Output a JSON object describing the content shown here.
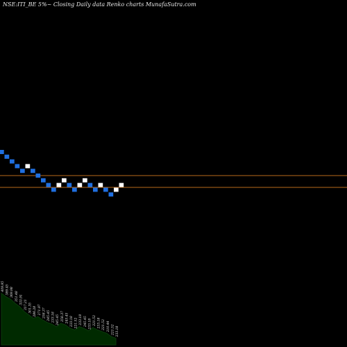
{
  "title": "NSE:ITI_BE 5%~  Closing Daily data  Renko  charts MunafaSutra.com",
  "chart_data": {
    "type": "renko",
    "title": "NSE:ITI_BE 5%~  Closing Daily data  Renko  charts MunafaSutra.com",
    "colors": {
      "down_brick": "#1f6fe0",
      "up_brick": "#ffffff",
      "reference_line": "#b86a1a",
      "volume_area": "#0b3a0b",
      "volume_fill": "#002a00",
      "background": "#000000"
    },
    "reference_lines": [
      {
        "name": "upper-line",
        "level": 253.8
      },
      {
        "name": "lower-line",
        "level": 236.2
      }
    ],
    "bricks": [
      {
        "dir": "down",
        "level": 0
      },
      {
        "dir": "down",
        "level": -1
      },
      {
        "dir": "down",
        "level": -2
      },
      {
        "dir": "down",
        "level": -3
      },
      {
        "dir": "down",
        "level": -4
      },
      {
        "dir": "up",
        "level": -3
      },
      {
        "dir": "down",
        "level": -4
      },
      {
        "dir": "down",
        "level": -5
      },
      {
        "dir": "down",
        "level": -6
      },
      {
        "dir": "down",
        "level": -7
      },
      {
        "dir": "down",
        "level": -8
      },
      {
        "dir": "up",
        "level": -7
      },
      {
        "dir": "up",
        "level": -6
      },
      {
        "dir": "down",
        "level": -7
      },
      {
        "dir": "down",
        "level": -8
      },
      {
        "dir": "up",
        "level": -7
      },
      {
        "dir": "up",
        "level": -6
      },
      {
        "dir": "down",
        "level": -7
      },
      {
        "dir": "down",
        "level": -8
      },
      {
        "dir": "up",
        "level": -7
      },
      {
        "dir": "down",
        "level": -8
      },
      {
        "dir": "down",
        "level": -9
      },
      {
        "dir": "up",
        "level": -8
      },
      {
        "dir": "up",
        "level": -7
      }
    ],
    "volume_labels": [
      "409.95",
      "389.45",
      "369.98",
      "351.48",
      "333.91",
      "317.21",
      "301.35",
      "286.28",
      "271.97",
      "258.37",
      "245.45",
      "233.18",
      "245.45",
      "258.37",
      "245.45",
      "233.18",
      "221.52",
      "233.18",
      "245.45",
      "233.18",
      "221.52",
      "233.18",
      "221.52",
      "210.44",
      "221.52",
      "233.18"
    ],
    "volume_values": [
      62,
      58,
      55,
      50,
      46,
      40,
      36,
      32,
      34,
      30,
      27,
      25,
      22,
      26,
      24,
      20,
      18,
      22,
      20,
      17,
      21,
      18,
      16,
      14,
      10,
      8
    ]
  }
}
